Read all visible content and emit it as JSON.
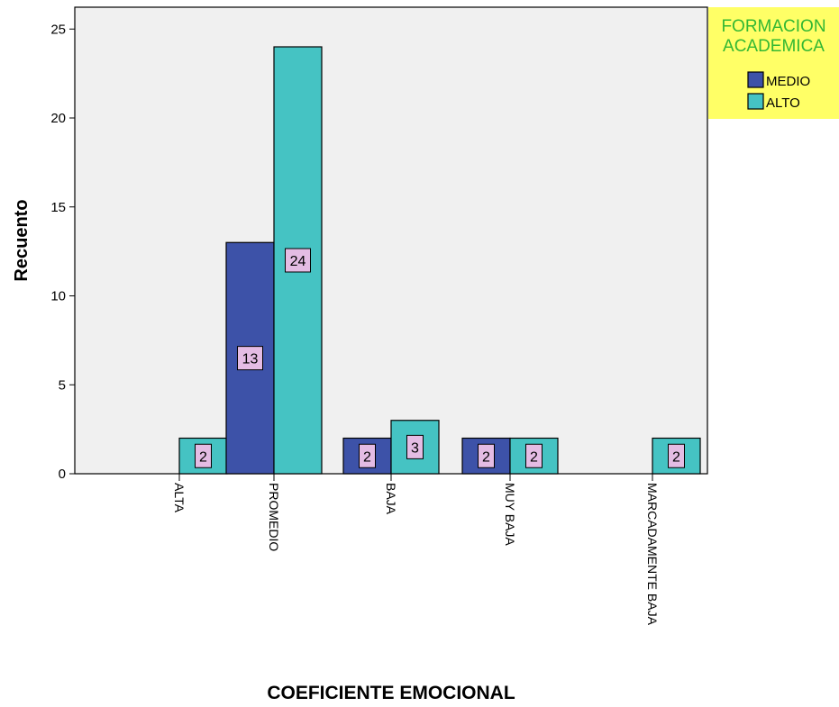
{
  "chart_data": {
    "type": "bar",
    "xlabel": "COEFICIENTE EMOCIONAL",
    "ylabel": "Recuento",
    "categories": [
      "ALTA",
      "PROMEDIO",
      "BAJA",
      "MUY BAJA",
      "MARCADAMENTE BAJA"
    ],
    "series": [
      {
        "name": "MEDIO",
        "color": "#3d52a8",
        "values": [
          null,
          13,
          2,
          2,
          null
        ]
      },
      {
        "name": "ALTO",
        "color": "#45c3c3",
        "values": [
          2,
          24,
          3,
          2,
          2
        ]
      }
    ],
    "ylim": [
      0,
      26
    ],
    "yticks": [
      0,
      5,
      10,
      15,
      20,
      25
    ],
    "grid": false,
    "plot_background": "#f0f0f0",
    "data_label_background": "#e4bce4",
    "legend": {
      "title": "FORMACION ACADEMICA",
      "title_lines": [
        "FORMACION",
        "ACADEMICA"
      ],
      "title_color": "#33b833",
      "background": "#ffff66",
      "placement": "top-right, outside plot"
    }
  }
}
